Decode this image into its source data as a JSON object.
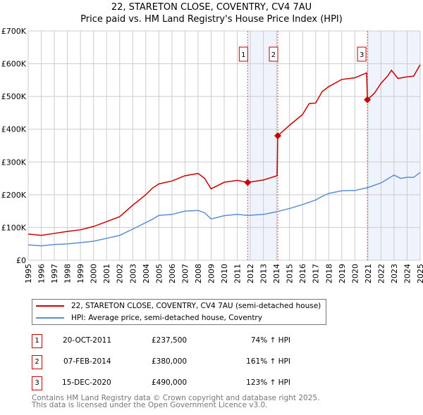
{
  "chart_data": {
    "type": "line",
    "title": "22, STARETON CLOSE, COVENTRY, CV4 7AU",
    "subtitle": "Price paid vs. HM Land Registry's House Price Index (HPI)",
    "xlim": [
      1995,
      2025
    ],
    "ylim": [
      0,
      700000
    ],
    "x_ticks": [
      "1995",
      "1996",
      "1997",
      "1998",
      "1999",
      "2000",
      "2001",
      "2002",
      "2003",
      "2004",
      "2005",
      "2006",
      "2007",
      "2008",
      "2009",
      "2010",
      "2011",
      "2012",
      "2013",
      "2014",
      "2015",
      "2016",
      "2017",
      "2018",
      "2019",
      "2020",
      "2021",
      "2022",
      "2023",
      "2024",
      "2025"
    ],
    "y_ticks": [
      {
        "v": 0,
        "label": "£0"
      },
      {
        "v": 100000,
        "label": "£100K"
      },
      {
        "v": 200000,
        "label": "£200K"
      },
      {
        "v": 300000,
        "label": "£300K"
      },
      {
        "v": 400000,
        "label": "£400K"
      },
      {
        "v": 500000,
        "label": "£500K"
      },
      {
        "v": 600000,
        "label": "£600K"
      },
      {
        "v": 700000,
        "label": "£700K"
      }
    ],
    "grid": true,
    "shaded_ranges": [
      [
        2011.8,
        2014.1
      ],
      [
        2020.96,
        2025
      ]
    ],
    "series": [
      {
        "name": "22, STARETON CLOSE, COVENTRY, CV4 7AU (semi-detached house)",
        "color": "#cc0000",
        "x": [
          1995,
          1996,
          1997,
          1998,
          1999,
          2000,
          2001,
          2002,
          2003,
          2004,
          2004.5,
          2005,
          2006,
          2007,
          2008,
          2008.5,
          2009,
          2010,
          2011,
          2011.8,
          2013,
          2014.05,
          2014.1,
          2015,
          2016,
          2016.5,
          2017,
          2017.5,
          2018,
          2019,
          2020,
          2020.9,
          2020.96,
          2021.5,
          2022,
          2022.5,
          2022.8,
          2023.3,
          2024,
          2024.5,
          2025
        ],
        "y": [
          80000,
          76000,
          82000,
          88000,
          93000,
          103000,
          118000,
          133000,
          168000,
          200000,
          220000,
          233000,
          242000,
          258000,
          265000,
          250000,
          218000,
          238000,
          244000,
          237500,
          245000,
          258000,
          380000,
          412000,
          445000,
          478000,
          480000,
          515000,
          530000,
          552000,
          557000,
          572000,
          490000,
          510000,
          540000,
          562000,
          580000,
          555000,
          560000,
          562000,
          597000
        ]
      },
      {
        "name": "HPI: Average price, semi-detached house, Coventry",
        "color": "#5b8fd4",
        "x": [
          1995,
          1996,
          1997,
          1998,
          1999,
          2000,
          2001,
          2002,
          2003,
          2004,
          2004.5,
          2005,
          2006,
          2007,
          2008,
          2008.5,
          2009,
          2010,
          2011,
          2011.8,
          2013,
          2014,
          2015,
          2016,
          2017,
          2017.5,
          2018,
          2019,
          2020,
          2021,
          2022,
          2022.5,
          2023,
          2023.5,
          2024,
          2024.5,
          2025
        ],
        "y": [
          47000,
          44000,
          48000,
          50000,
          54000,
          58000,
          67000,
          76000,
          95000,
          115000,
          125000,
          137000,
          140000,
          150000,
          152000,
          145000,
          126000,
          136000,
          140000,
          137000,
          140000,
          148000,
          158000,
          170000,
          184000,
          195000,
          204000,
          212000,
          213000,
          222000,
          236000,
          248000,
          260000,
          250000,
          253000,
          253000,
          268000
        ]
      }
    ],
    "sales": [
      {
        "num": "1",
        "x": 2011.8,
        "y": 237500,
        "date": "20-OCT-2011",
        "price": "£237,500",
        "hpi": "74% ↑ HPI"
      },
      {
        "num": "2",
        "x": 2014.1,
        "y": 380000,
        "date": "07-FEB-2014",
        "price": "£380,000",
        "hpi": "161% ↑ HPI"
      },
      {
        "num": "3",
        "x": 2020.96,
        "y": 490000,
        "date": "15-DEC-2020",
        "price": "£490,000",
        "hpi": "123% ↑ HPI"
      }
    ]
  },
  "footer": {
    "line1": "Contains HM Land Registry data © Crown copyright and database right 2025.",
    "line2": "This data is licensed under the Open Government Licence v3.0."
  }
}
